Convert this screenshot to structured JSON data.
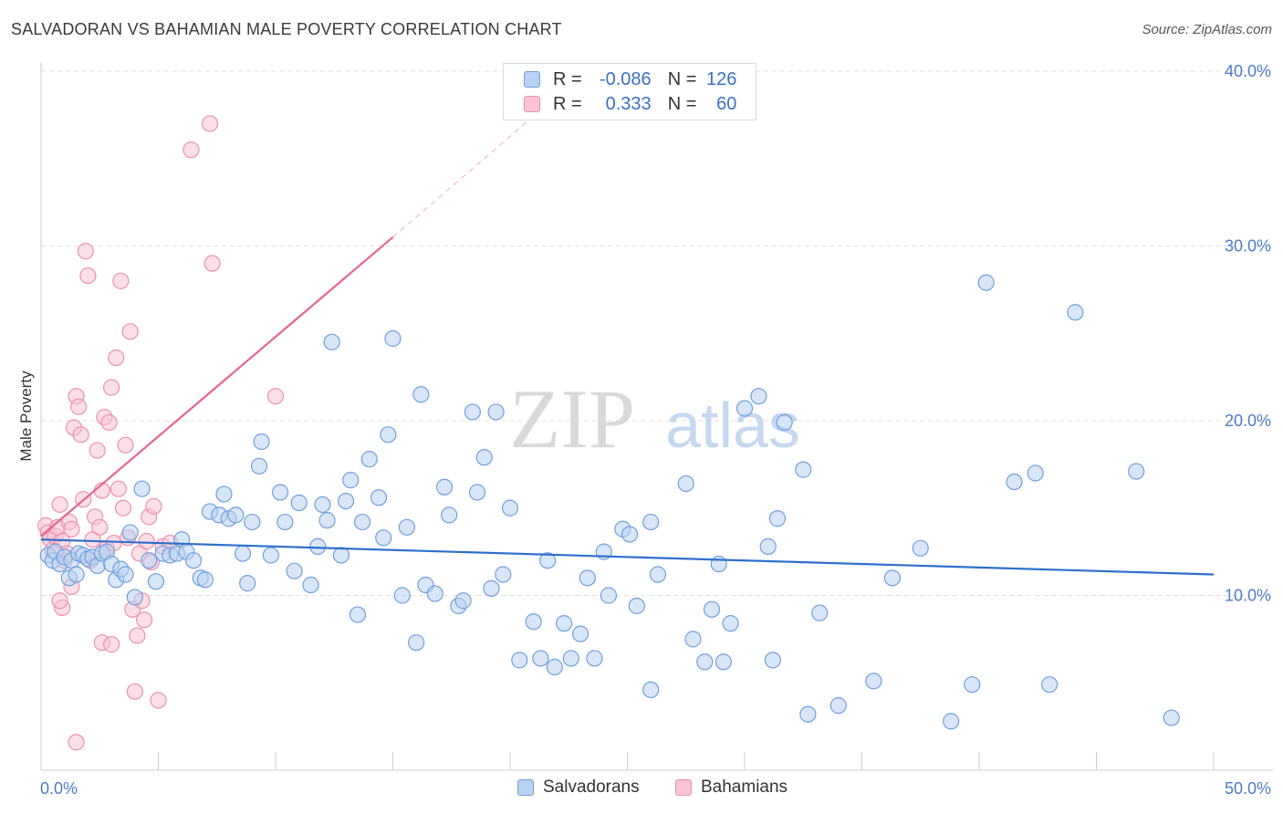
{
  "title": "SALVADORAN VS BAHAMIAN MALE POVERTY CORRELATION CHART",
  "source": "Source: ZipAtlas.com",
  "watermark": {
    "part1": "ZIP",
    "part2": "atlas"
  },
  "legend": {
    "rows": [
      {
        "r_label": "R =",
        "r_value": "-0.086",
        "n_label": "N =",
        "n_value": "126"
      },
      {
        "r_label": "R =",
        "r_value": "0.333",
        "n_label": "N =",
        "n_value": "60"
      }
    ]
  },
  "bottom_legend": [
    "Salvadorans",
    "Bahamians"
  ],
  "colors": {
    "salvadoran_fill": "#b9d1f1",
    "salvadoran_stroke": "#6e9fe0",
    "salvadoran_line": "#2f6fcc",
    "bahamian_fill": "#f8c4d4",
    "bahamian_stroke": "#ee8fae",
    "bahamian_line": "#e8648f",
    "axis_text": "#4a7cc7"
  },
  "chart_data": {
    "type": "scatter",
    "title": "SALVADORAN VS BAHAMIAN MALE POVERTY CORRELATION CHART",
    "xlabel": "",
    "ylabel": "Male Poverty",
    "xlim": [
      0,
      50
    ],
    "ylim": [
      0,
      40
    ],
    "x_tick_labels": [
      "0.0%",
      "50.0%"
    ],
    "y_ticks": [
      10,
      20,
      30,
      40
    ],
    "y_tick_labels": [
      "10.0%",
      "20.0%",
      "30.0%",
      "40.0%"
    ],
    "grid": true,
    "legend_position": "top-center",
    "series": [
      {
        "name": "Salvadorans",
        "r": -0.086,
        "n": 126,
        "trend": {
          "x": [
            0,
            50
          ],
          "y": [
            13.2,
            11.2
          ],
          "style": "solid"
        },
        "points": [
          [
            0.3,
            12.3
          ],
          [
            0.5,
            12.0
          ],
          [
            0.6,
            12.5
          ],
          [
            0.8,
            11.8
          ],
          [
            1.0,
            12.2
          ],
          [
            1.2,
            11.0
          ],
          [
            1.3,
            12.0
          ],
          [
            1.5,
            11.2
          ],
          [
            1.6,
            12.4
          ],
          [
            1.8,
            12.3
          ],
          [
            2.0,
            12.1
          ],
          [
            2.2,
            12.2
          ],
          [
            2.4,
            11.7
          ],
          [
            2.6,
            12.4
          ],
          [
            2.8,
            12.5
          ],
          [
            3.0,
            11.8
          ],
          [
            3.2,
            10.9
          ],
          [
            3.4,
            11.5
          ],
          [
            3.6,
            11.2
          ],
          [
            3.8,
            13.6
          ],
          [
            4.0,
            9.9
          ],
          [
            4.3,
            16.1
          ],
          [
            4.6,
            12.0
          ],
          [
            4.9,
            10.8
          ],
          [
            5.2,
            12.4
          ],
          [
            5.5,
            12.3
          ],
          [
            5.8,
            12.4
          ],
          [
            6.0,
            13.2
          ],
          [
            6.2,
            12.5
          ],
          [
            6.5,
            12.0
          ],
          [
            6.8,
            11.0
          ],
          [
            7.0,
            10.9
          ],
          [
            7.2,
            14.8
          ],
          [
            7.6,
            14.6
          ],
          [
            7.8,
            15.8
          ],
          [
            8.0,
            14.4
          ],
          [
            8.3,
            14.6
          ],
          [
            8.6,
            12.4
          ],
          [
            8.8,
            10.7
          ],
          [
            9.0,
            14.2
          ],
          [
            9.3,
            17.4
          ],
          [
            9.4,
            18.8
          ],
          [
            9.8,
            12.3
          ],
          [
            10.2,
            15.9
          ],
          [
            10.4,
            14.2
          ],
          [
            10.8,
            11.4
          ],
          [
            11.0,
            15.3
          ],
          [
            11.5,
            10.6
          ],
          [
            11.8,
            12.8
          ],
          [
            12.0,
            15.2
          ],
          [
            12.2,
            14.3
          ],
          [
            12.4,
            24.5
          ],
          [
            12.8,
            12.3
          ],
          [
            13.0,
            15.4
          ],
          [
            13.2,
            16.6
          ],
          [
            13.5,
            8.9
          ],
          [
            13.7,
            14.2
          ],
          [
            14.0,
            17.8
          ],
          [
            14.4,
            15.6
          ],
          [
            14.6,
            13.3
          ],
          [
            14.8,
            19.2
          ],
          [
            15.0,
            24.7
          ],
          [
            15.4,
            10.0
          ],
          [
            15.6,
            13.9
          ],
          [
            16.0,
            7.3
          ],
          [
            16.2,
            21.5
          ],
          [
            16.4,
            10.6
          ],
          [
            16.8,
            10.1
          ],
          [
            17.2,
            16.2
          ],
          [
            17.4,
            14.6
          ],
          [
            17.8,
            9.4
          ],
          [
            18.0,
            9.7
          ],
          [
            18.4,
            20.5
          ],
          [
            18.6,
            15.9
          ],
          [
            18.9,
            17.9
          ],
          [
            19.2,
            10.4
          ],
          [
            19.4,
            20.5
          ],
          [
            19.7,
            11.2
          ],
          [
            20.0,
            15.0
          ],
          [
            20.4,
            6.3
          ],
          [
            21.0,
            8.5
          ],
          [
            21.3,
            6.4
          ],
          [
            21.6,
            12.0
          ],
          [
            21.9,
            5.9
          ],
          [
            22.3,
            8.4
          ],
          [
            22.6,
            6.4
          ],
          [
            23.0,
            7.8
          ],
          [
            23.3,
            11.0
          ],
          [
            23.6,
            6.4
          ],
          [
            24.0,
            12.5
          ],
          [
            24.2,
            10.0
          ],
          [
            24.8,
            13.8
          ],
          [
            25.1,
            13.5
          ],
          [
            25.4,
            9.4
          ],
          [
            26.0,
            14.2
          ],
          [
            26.0,
            4.6
          ],
          [
            26.3,
            11.2
          ],
          [
            27.5,
            16.4
          ],
          [
            27.8,
            7.5
          ],
          [
            28.3,
            6.2
          ],
          [
            28.6,
            9.2
          ],
          [
            28.9,
            11.8
          ],
          [
            29.1,
            6.2
          ],
          [
            29.4,
            8.4
          ],
          [
            30.0,
            20.7
          ],
          [
            30.6,
            21.4
          ],
          [
            31.0,
            12.8
          ],
          [
            31.2,
            6.3
          ],
          [
            31.4,
            14.4
          ],
          [
            31.7,
            19.9
          ],
          [
            32.5,
            17.2
          ],
          [
            32.7,
            3.2
          ],
          [
            33.2,
            9.0
          ],
          [
            34.0,
            3.7
          ],
          [
            35.5,
            5.1
          ],
          [
            36.3,
            11.0
          ],
          [
            37.5,
            12.7
          ],
          [
            38.8,
            2.8
          ],
          [
            39.7,
            4.9
          ],
          [
            40.3,
            27.9
          ],
          [
            41.5,
            16.5
          ],
          [
            42.4,
            17.0
          ],
          [
            43.0,
            4.9
          ],
          [
            44.1,
            26.2
          ],
          [
            46.7,
            17.1
          ],
          [
            48.2,
            3.0
          ]
        ]
      },
      {
        "name": "Bahamians",
        "r": 0.333,
        "n": 60,
        "trend": {
          "x": [
            0,
            15
          ],
          "y": [
            13.4,
            30.5
          ],
          "extended": {
            "x": [
              15,
              21.5
            ],
            "y": [
              30.5,
              38.0
            ]
          },
          "style": "solid-then-dashed"
        },
        "points": [
          [
            0.2,
            14.0
          ],
          [
            0.3,
            13.6
          ],
          [
            0.4,
            13.2
          ],
          [
            0.5,
            12.6
          ],
          [
            0.6,
            13.4
          ],
          [
            0.7,
            13.9
          ],
          [
            0.8,
            15.2
          ],
          [
            0.9,
            13.1
          ],
          [
            1.0,
            12.0
          ],
          [
            1.1,
            12.4
          ],
          [
            1.2,
            14.2
          ],
          [
            1.3,
            13.8
          ],
          [
            1.4,
            19.6
          ],
          [
            1.5,
            21.4
          ],
          [
            1.6,
            20.8
          ],
          [
            1.7,
            19.2
          ],
          [
            1.8,
            15.5
          ],
          [
            1.9,
            29.7
          ],
          [
            2.0,
            28.3
          ],
          [
            2.1,
            12.0
          ],
          [
            2.2,
            13.2
          ],
          [
            2.3,
            14.5
          ],
          [
            2.4,
            18.3
          ],
          [
            2.5,
            13.9
          ],
          [
            2.6,
            16.0
          ],
          [
            2.7,
            20.2
          ],
          [
            2.8,
            12.7
          ],
          [
            2.9,
            19.9
          ],
          [
            3.0,
            21.9
          ],
          [
            3.1,
            13.0
          ],
          [
            3.2,
            23.6
          ],
          [
            3.3,
            16.1
          ],
          [
            3.4,
            28.0
          ],
          [
            3.5,
            15.0
          ],
          [
            3.6,
            18.6
          ],
          [
            3.7,
            13.3
          ],
          [
            3.8,
            25.1
          ],
          [
            3.9,
            9.2
          ],
          [
            4.0,
            4.5
          ],
          [
            4.1,
            7.7
          ],
          [
            4.2,
            12.4
          ],
          [
            4.3,
            9.7
          ],
          [
            4.4,
            8.6
          ],
          [
            4.5,
            13.1
          ],
          [
            4.6,
            14.5
          ],
          [
            4.7,
            11.9
          ],
          [
            4.8,
            15.1
          ],
          [
            5.0,
            4.0
          ],
          [
            5.2,
            12.8
          ],
          [
            5.5,
            13.0
          ],
          [
            1.5,
            1.6
          ],
          [
            2.6,
            7.3
          ],
          [
            0.9,
            9.3
          ],
          [
            1.3,
            10.5
          ],
          [
            6.4,
            35.5
          ],
          [
            7.2,
            37.0
          ],
          [
            7.3,
            29.0
          ],
          [
            10.0,
            21.4
          ],
          [
            3.0,
            7.2
          ],
          [
            0.8,
            9.7
          ]
        ]
      }
    ]
  }
}
